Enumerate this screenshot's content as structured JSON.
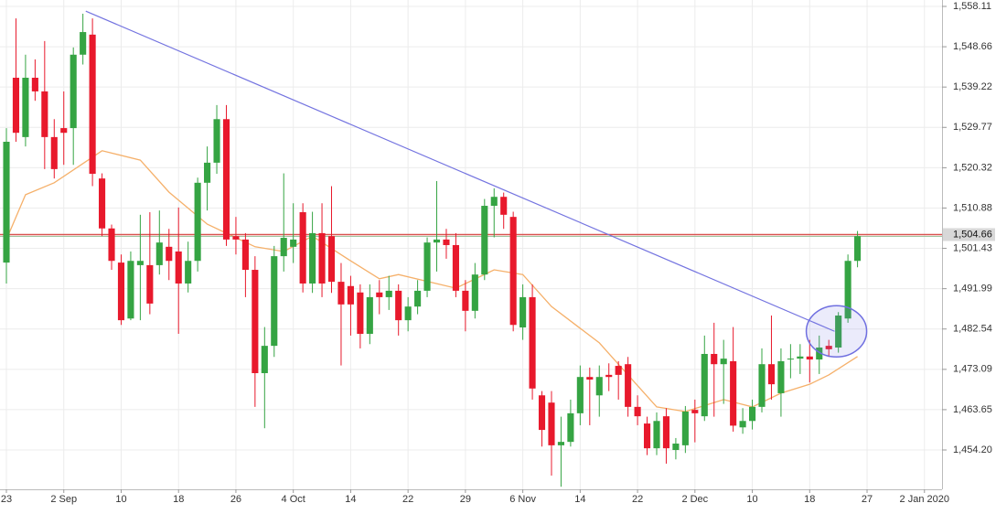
{
  "chart_data": {
    "type": "candlestick",
    "x": [
      0,
      1,
      2,
      3,
      4,
      5,
      6,
      7,
      8,
      9,
      10,
      11,
      12,
      13,
      14,
      15,
      16,
      17,
      18,
      19,
      20,
      21,
      22,
      23,
      24,
      25,
      26,
      27,
      28,
      29,
      30,
      31,
      32,
      33,
      34,
      35,
      36,
      37,
      38,
      39,
      40,
      41,
      42,
      43,
      44,
      45,
      46,
      47,
      48,
      49,
      50,
      51,
      52,
      53,
      54,
      55,
      56,
      57,
      58,
      59,
      60,
      61,
      62,
      63,
      64,
      65,
      66,
      67,
      68,
      69,
      70,
      71,
      72,
      73,
      74,
      75,
      76,
      77,
      78,
      79,
      80,
      81,
      82,
      83,
      84,
      85,
      86,
      87,
      88,
      89
    ],
    "open": [
      1498.1,
      1541.4,
      1527.5,
      1541.4,
      1538.2,
      1527.5,
      1529.6,
      1529.6,
      1546.8,
      1551.5,
      1517.8,
      1506.1,
      1498.1,
      1485.0,
      1497.5,
      1497.5,
      1497.5,
      1501.8,
      1500.7,
      1493.2,
      1498.5,
      1516.8,
      1521.5,
      1531.7,
      1504.3,
      1503.5,
      1496.4,
      1472.2,
      1478.6,
      1499.6,
      1501.8,
      1509.9,
      1493.2,
      1505.0,
      1504.3,
      1493.6,
      1492.6,
      1491.1,
      1481.4,
      1491.1,
      1490.0,
      1491.5,
      1484.6,
      1487.8,
      1491.5,
      1502.8,
      1503.5,
      1502.2,
      1491.5,
      1486.8,
      1495.3,
      1511.4,
      1513.5,
      1508.8,
      1482.9,
      1490.0,
      1467.0,
      1465.3,
      1455.3,
      1456.1,
      1462.8,
      1471.3,
      1467.0,
      1471.8,
      1473.9,
      1474.3,
      1464.3,
      1460.4,
      1454.6,
      1462.1,
      1454.2,
      1455.3,
      1463.6,
      1462.1,
      1476.7,
      1474.3,
      1475.0,
      1459.5,
      1461.0,
      1464.3,
      1474.3,
      1467.5,
      1475.4,
      1475.6,
      1476.1,
      1475.4,
      1478.6,
      1478.2,
      1485.0,
      1498.5
    ],
    "high": [
      1529.6,
      1555.3,
      1546.8,
      1545.7,
      1550.0,
      1531.7,
      1538.2,
      1548.5,
      1556.4,
      1555.3,
      1519.0,
      1507.0,
      1500.0,
      1500.7,
      1509.3,
      1509.9,
      1510.3,
      1506.0,
      1511.0,
      1503.0,
      1518.0,
      1525.3,
      1535.0,
      1535.0,
      1508.8,
      1505.0,
      1499.6,
      1483.0,
      1502.0,
      1519.0,
      1512.0,
      1512.0,
      1510.0,
      1512.0,
      1516.0,
      1498.0,
      1495.0,
      1493.0,
      1493.0,
      1494.0,
      1495.0,
      1493.0,
      1490.0,
      1494.0,
      1504.0,
      1517.2,
      1506.0,
      1505.0,
      1494.0,
      1498.0,
      1513.0,
      1515.5,
      1514.5,
      1510.0,
      1493.0,
      1493.0,
      1468.0,
      1468.0,
      1462.0,
      1466.0,
      1474.0,
      1473.5,
      1474.0,
      1474.5,
      1475.0,
      1476.0,
      1467.0,
      1462.0,
      1463.0,
      1464.0,
      1457.0,
      1464.5,
      1466.0,
      1481.0,
      1484.0,
      1480.0,
      1483.0,
      1464.0,
      1466.0,
      1478.0,
      1485.7,
      1478.0,
      1479.0,
      1479.0,
      1480.0,
      1481.0,
      1480.0,
      1486.5,
      1500.0,
      1505.5
    ],
    "low": [
      1493.2,
      1526.4,
      1525.3,
      1536.0,
      1520.0,
      1517.8,
      1521.0,
      1521.0,
      1544.5,
      1516.0,
      1504.3,
      1496.4,
      1483.5,
      1484.6,
      1484.6,
      1486.0,
      1495.3,
      1494.0,
      1481.4,
      1491.1,
      1496.0,
      1510.3,
      1518.9,
      1502.0,
      1500.0,
      1490.0,
      1464.3,
      1459.3,
      1476.0,
      1496.0,
      1498.0,
      1491.1,
      1491.0,
      1490.0,
      1491.0,
      1474.0,
      1481.0,
      1478.0,
      1479.0,
      1486.0,
      1487.0,
      1481.0,
      1482.0,
      1486.0,
      1490.0,
      1496.0,
      1499.0,
      1490.0,
      1482.0,
      1485.0,
      1494.0,
      1504.0,
      1506.0,
      1482.0,
      1480.0,
      1466.0,
      1455.0,
      1448.2,
      1445.6,
      1455.0,
      1460.0,
      1460.0,
      1462.0,
      1468.0,
      1466.0,
      1462.0,
      1460.0,
      1453.0,
      1453.0,
      1451.0,
      1452.0,
      1453.5,
      1456.0,
      1461.0,
      1462.0,
      1465.0,
      1458.5,
      1458.0,
      1459.0,
      1463.0,
      1466.0,
      1462.0,
      1471.0,
      1472.0,
      1470.0,
      1472.0,
      1476.0,
      1477.0,
      1484.0,
      1497.0
    ],
    "close": [
      1526.4,
      1528.5,
      1541.4,
      1538.2,
      1527.5,
      1520.0,
      1528.5,
      1546.8,
      1552.1,
      1518.9,
      1506.1,
      1498.5,
      1484.6,
      1498.5,
      1498.5,
      1488.5,
      1502.8,
      1498.5,
      1493.2,
      1498.5,
      1516.8,
      1521.5,
      1531.7,
      1503.5,
      1503.5,
      1496.4,
      1472.2,
      1478.6,
      1499.6,
      1503.9,
      1503.5,
      1493.2,
      1505.0,
      1493.2,
      1493.6,
      1488.3,
      1488.3,
      1481.4,
      1490.0,
      1490.0,
      1491.5,
      1484.6,
      1487.8,
      1491.5,
      1502.8,
      1503.5,
      1502.2,
      1491.5,
      1486.8,
      1495.3,
      1511.4,
      1513.5,
      1509.3,
      1483.5,
      1490.0,
      1468.6,
      1458.9,
      1455.3,
      1456.1,
      1462.8,
      1471.3,
      1470.7,
      1471.3,
      1471.3,
      1471.8,
      1464.3,
      1462.1,
      1454.6,
      1461.0,
      1454.6,
      1455.7,
      1463.2,
      1462.8,
      1476.7,
      1474.3,
      1475.6,
      1459.9,
      1461.0,
      1464.3,
      1474.3,
      1469.6,
      1475.0,
      1475.6,
      1476.1,
      1475.4,
      1478.2,
      1477.8,
      1485.7,
      1498.5,
      1504.3
    ],
    "up_color": "#35a443",
    "down_color": "#e8192c",
    "moving_average": {
      "color": "#f5b06a",
      "x": [
        0,
        2,
        5,
        10,
        14,
        17,
        21,
        26,
        29,
        32,
        36,
        39,
        41,
        47,
        51,
        54,
        57,
        62,
        65,
        68,
        71,
        75,
        78,
        81,
        84,
        86,
        89
      ],
      "values": [
        1503.5,
        1514.0,
        1516.8,
        1524.3,
        1522.1,
        1514.6,
        1507.1,
        1501.8,
        1500.7,
        1504.3,
        1498.5,
        1494.3,
        1495.3,
        1492.1,
        1496.4,
        1495.3,
        1487.8,
        1479.3,
        1471.8,
        1464.3,
        1463.2,
        1466.0,
        1464.3,
        1467.5,
        1469.6,
        1471.8,
        1476.1
      ]
    },
    "trendline": {
      "color": "#7474e0",
      "x": [
        8.3,
        86.6
      ],
      "values": [
        1557.0,
        1482.0
      ]
    },
    "highlight": {
      "color": "#6f6fe0",
      "x": 86.8,
      "y": 1482.0
    },
    "price_line": {
      "value": 1504.66,
      "label": "1,504.66",
      "color": "#d9534f"
    },
    "xlim": [
      -0.67,
      97.84
    ],
    "ylim": [
      1444.99,
      1559.61
    ],
    "xticks": [
      {
        "value": 0,
        "label": "23"
      },
      {
        "value": 6,
        "label": "2 Sep"
      },
      {
        "value": 12,
        "label": "10"
      },
      {
        "value": 18,
        "label": "18"
      },
      {
        "value": 24,
        "label": "26"
      },
      {
        "value": 30,
        "label": "4 Oct"
      },
      {
        "value": 36,
        "label": "14"
      },
      {
        "value": 42,
        "label": "22"
      },
      {
        "value": 48,
        "label": "29"
      },
      {
        "value": 54,
        "label": "6 Nov"
      },
      {
        "value": 60,
        "label": "14"
      },
      {
        "value": 66,
        "label": "22"
      },
      {
        "value": 72,
        "label": "2 Dec"
      },
      {
        "value": 78,
        "label": "10"
      },
      {
        "value": 84,
        "label": "18"
      },
      {
        "value": 90,
        "label": "27"
      },
      {
        "value": 96,
        "label": "2 Jan 2020"
      }
    ],
    "yticks": [
      {
        "value": 1558.11,
        "label": "1,558.11"
      },
      {
        "value": 1548.66,
        "label": "1,548.66"
      },
      {
        "value": 1539.22,
        "label": "1,539.22"
      },
      {
        "value": 1529.77,
        "label": "1,529.77"
      },
      {
        "value": 1520.32,
        "label": "1,520.32"
      },
      {
        "value": 1510.88,
        "label": "1,510.88"
      },
      {
        "value": 1501.43,
        "label": "1,501.43"
      },
      {
        "value": 1491.99,
        "label": "1,491.99"
      },
      {
        "value": 1482.54,
        "label": "1,482.54"
      },
      {
        "value": 1473.09,
        "label": "1,473.09"
      },
      {
        "value": 1463.65,
        "label": "1,463.65"
      },
      {
        "value": 1454.2,
        "label": "1,454.20"
      }
    ],
    "grid": true
  }
}
